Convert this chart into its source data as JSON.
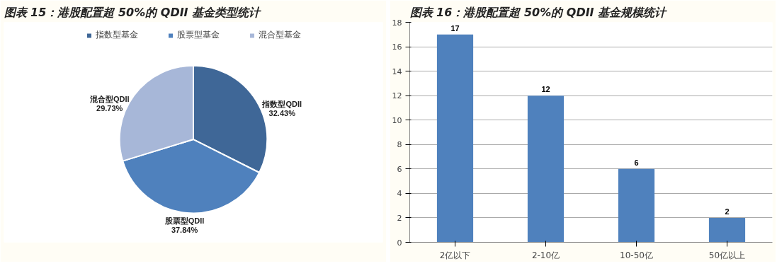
{
  "chart_data": [
    {
      "type": "pie",
      "title": "图表 15：港股配置超 50%的 QDII 基金类型统计",
      "categories": [
        "指数型基金",
        "股票型基金",
        "混合型基金"
      ],
      "values": [
        32.43,
        37.84,
        29.73
      ],
      "colors": [
        "#3f6797",
        "#4f81bd",
        "#a7b7d8"
      ],
      "value_labels": [
        "指数型QDII\n32.43%",
        "股票型QDII\n37.84%",
        "混合型QDII\n29.73%"
      ],
      "legend": "top"
    },
    {
      "type": "bar",
      "title": "图表 16：港股配置超 50%的 QDII 基金规模统计",
      "categories": [
        "2亿以下",
        "2-10亿",
        "10-50亿",
        "50亿以上"
      ],
      "values": [
        17,
        12,
        6,
        2
      ],
      "color": "#4f81bd",
      "ylim": [
        0,
        18
      ],
      "yticks": [
        0,
        2,
        4,
        6,
        8,
        10,
        12,
        14,
        16,
        18
      ],
      "grid": "y",
      "data_labels": true
    }
  ]
}
